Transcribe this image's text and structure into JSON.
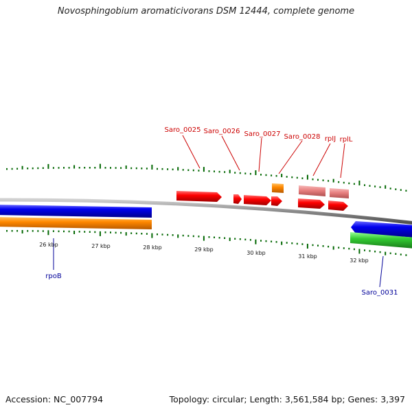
{
  "title": "Novosphingobium aromaticivorans DSM 12444, complete genome",
  "footer": {
    "accession": "Accession: NC_007794",
    "summary": "Topology: circular; Length: 3,561,584 bp; Genes: 3,397"
  },
  "scale": {
    "unit": "kbp",
    "labels": [
      "26 kbp",
      "27 kbp",
      "28 kbp",
      "29 kbp",
      "30 kbp",
      "31 kbp",
      "32 kbp"
    ]
  },
  "genes_top": [
    {
      "label": "Saro_0025",
      "color": "#cc0000"
    },
    {
      "label": "Saro_0026",
      "color": "#cc0000"
    },
    {
      "label": "Saro_0027",
      "color": "#cc0000"
    },
    {
      "label": "Saro_0028",
      "color": "#cc0000"
    },
    {
      "label": "rpIJ",
      "color": "#cc0000"
    },
    {
      "label": "rplL",
      "color": "#cc0000"
    }
  ],
  "genes_bottom": [
    {
      "label": "rpoB",
      "color": "#000099"
    },
    {
      "label": "Saro_0031",
      "color": "#000099"
    }
  ],
  "colors": {
    "forward_cds": "#ff0000",
    "forward_light": "#e88080",
    "forward_orange": "#ff9900",
    "reverse_blue": "#0000ee",
    "reverse_orange": "#ff8800",
    "reverse_green": "#33cc33",
    "backbone": "#808080",
    "ticks": "#006600"
  }
}
